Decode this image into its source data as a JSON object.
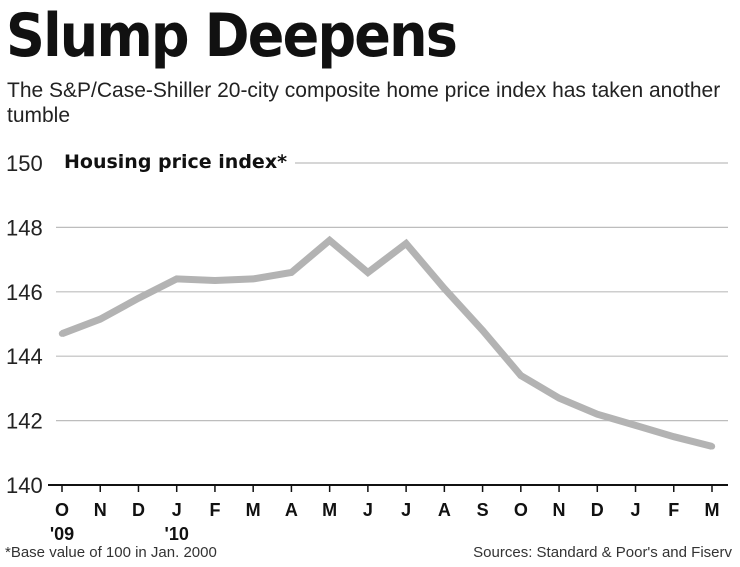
{
  "chart_data": {
    "type": "line",
    "title": "Slump Deepens",
    "subtitle": "The S&P/Case-Shiller 20-city composite home price index has taken another tumble",
    "ylabel": "Housing price index*",
    "xlabel": "",
    "ylim": [
      140,
      150
    ],
    "yticks": [
      140,
      142,
      144,
      146,
      148,
      150
    ],
    "grid": true,
    "legend": "none",
    "colors": {
      "line": "#b3b3b3",
      "grid": "#bdbdbd",
      "axis": "#111111"
    },
    "categories": [
      "O",
      "N",
      "D",
      "J",
      "F",
      "M",
      "A",
      "M",
      "J",
      "J",
      "A",
      "S",
      "O",
      "N",
      "D",
      "J",
      "F",
      "M"
    ],
    "year_labels": [
      "'09",
      "",
      "",
      "'10",
      "",
      "",
      "",
      "",
      "",
      "",
      "",
      "",
      "",
      "",
      "",
      "",
      "",
      ""
    ],
    "series": [
      {
        "values": [
          144.7,
          145.15,
          145.8,
          146.4,
          146.35,
          146.4,
          146.6,
          147.6,
          146.6,
          147.5,
          146.1,
          144.8,
          143.4,
          142.7,
          142.2,
          141.85,
          141.5,
          141.2
        ]
      }
    ],
    "footnote": "*Base value of 100 in Jan. 2000",
    "source": "Sources: Standard & Poor's and Fiserv"
  }
}
